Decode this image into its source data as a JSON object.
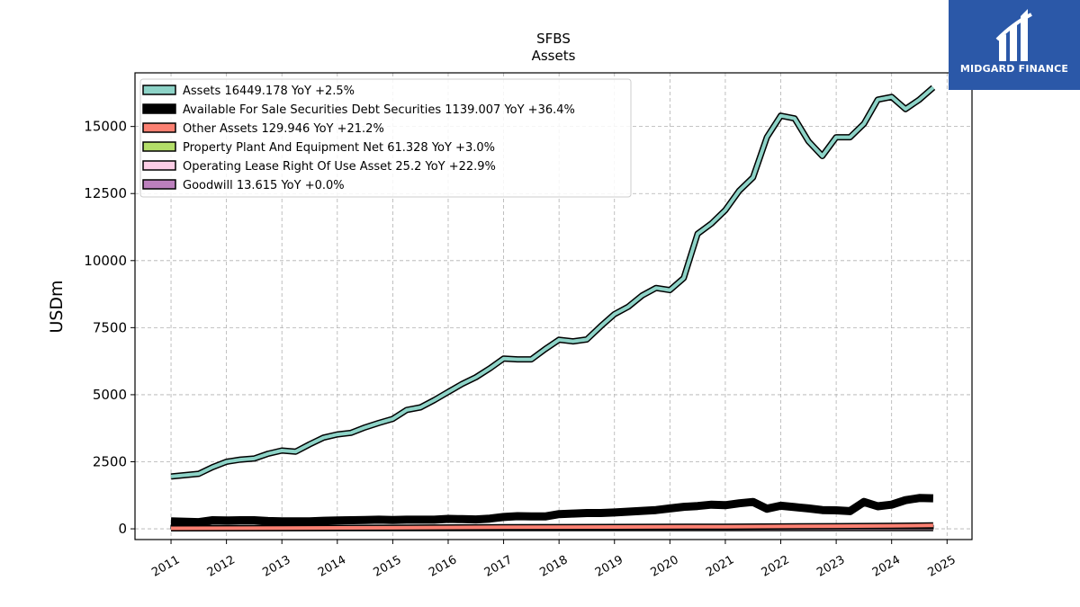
{
  "chart_data": {
    "type": "line",
    "title": "SFBS",
    "subtitle": "Assets",
    "ylabel": "USDm",
    "xlabel": "",
    "ylim": [
      -400,
      17000
    ],
    "xlim": [
      2010.35,
      2025.45
    ],
    "yticks": [
      0,
      2500,
      5000,
      7500,
      10000,
      12500,
      15000
    ],
    "xticks": [
      "2011",
      "2012",
      "2013",
      "2014",
      "2015",
      "2016",
      "2017",
      "2018",
      "2019",
      "2020",
      "2021",
      "2022",
      "2023",
      "2024",
      "2025"
    ],
    "grid": true,
    "legend_position": "upper-left",
    "series": [
      {
        "name": "Assets",
        "legend": "Assets  16449.178 YoY +2.5%",
        "color": "#8dd3c7",
        "x": [
          2011.0,
          2011.5,
          2011.75,
          2012.0,
          2012.25,
          2012.5,
          2012.75,
          2013.0,
          2013.25,
          2013.5,
          2013.75,
          2014.0,
          2014.25,
          2014.5,
          2014.75,
          2015.0,
          2015.25,
          2015.5,
          2015.75,
          2016.0,
          2016.25,
          2016.5,
          2016.75,
          2017.0,
          2017.25,
          2017.5,
          2017.75,
          2018.0,
          2018.25,
          2018.5,
          2018.75,
          2019.0,
          2019.25,
          2019.5,
          2019.75,
          2020.0,
          2020.25,
          2020.5,
          2020.75,
          2021.0,
          2021.25,
          2021.5,
          2021.75,
          2022.0,
          2022.25,
          2022.5,
          2022.75,
          2023.0,
          2023.25,
          2023.5,
          2023.75,
          2024.0,
          2024.25,
          2024.5,
          2024.75
        ],
        "values": [
          1950,
          2050,
          2300,
          2500,
          2580,
          2620,
          2800,
          2920,
          2880,
          3150,
          3400,
          3520,
          3580,
          3780,
          3950,
          4100,
          4430,
          4530,
          4800,
          5100,
          5400,
          5650,
          5980,
          6350,
          6320,
          6320,
          6700,
          7050,
          6990,
          7060,
          7550,
          8000,
          8280,
          8700,
          8980,
          8900,
          9350,
          11000,
          11380,
          11880,
          12600,
          13100,
          14600,
          15400,
          15300,
          14450,
          13900,
          14600,
          14600,
          15100,
          16000,
          16100,
          15650,
          16000,
          16449.178
        ]
      },
      {
        "name": "Available For Sale Securities Debt Securities",
        "legend": "Available For Sale Securities Debt Securities  1139.007 YoY +36.4%",
        "color": "#000000",
        "x": [
          2011.0,
          2011.5,
          2011.75,
          2012.0,
          2012.25,
          2012.5,
          2012.75,
          2013.0,
          2013.25,
          2013.5,
          2013.75,
          2014.0,
          2014.25,
          2014.5,
          2014.75,
          2015.0,
          2015.25,
          2015.5,
          2015.75,
          2016.0,
          2016.25,
          2016.5,
          2016.75,
          2017.0,
          2017.25,
          2017.5,
          2017.75,
          2018.0,
          2018.25,
          2018.5,
          2018.75,
          2019.0,
          2019.25,
          2019.5,
          2019.75,
          2020.0,
          2020.25,
          2020.5,
          2020.75,
          2021.0,
          2021.25,
          2021.5,
          2021.75,
          2022.0,
          2022.25,
          2022.5,
          2022.75,
          2023.0,
          2023.25,
          2023.5,
          2023.75,
          2024.0,
          2024.25,
          2024.5,
          2024.75
        ],
        "values": [
          280,
          250,
          320,
          310,
          320,
          320,
          290,
          280,
          280,
          280,
          300,
          310,
          320,
          330,
          340,
          330,
          340,
          340,
          340,
          370,
          360,
          350,
          380,
          440,
          470,
          460,
          460,
          550,
          570,
          590,
          590,
          610,
          640,
          670,
          700,
          760,
          820,
          850,
          900,
          880,
          950,
          1000,
          750,
          860,
          810,
          760,
          700,
          690,
          660,
          1000,
          840,
          900,
          1070,
          1150,
          1139.007
        ]
      },
      {
        "name": "Other Assets",
        "legend": "Other Assets  129.946 YoY +21.2%",
        "color": "#fb8072",
        "x": [
          2011.0,
          2013.0,
          2015.0,
          2017.0,
          2019.0,
          2021.0,
          2023.0,
          2024.0,
          2024.75
        ],
        "values": [
          20,
          30,
          40,
          60,
          70,
          80,
          100,
          110,
          129.946
        ]
      },
      {
        "name": "Property Plant And Equipment Net",
        "legend": "Property Plant And Equipment Net  61.328 YoY +3.0%",
        "color": "#b3de69",
        "x": [
          2011.0,
          2015.0
        ],
        "values": [
          0,
          0
        ]
      },
      {
        "name": "Operating Lease Right Of Use Asset",
        "legend": "Operating Lease Right Of Use Asset  25.2 YoY +22.9%",
        "color": "#fccde5",
        "x": [
          2011.0,
          2024.75
        ],
        "values": [
          25,
          25.2
        ]
      },
      {
        "name": "Goodwill",
        "legend": "Goodwill  13.615 YoY +0.0%",
        "color": "#bc80bd",
        "x": [
          2015.0,
          2024.75
        ],
        "values": [
          13.615,
          13.615
        ]
      }
    ]
  },
  "logo": {
    "text": "MIDGARD FINANCE",
    "color": "#2b58a8"
  }
}
